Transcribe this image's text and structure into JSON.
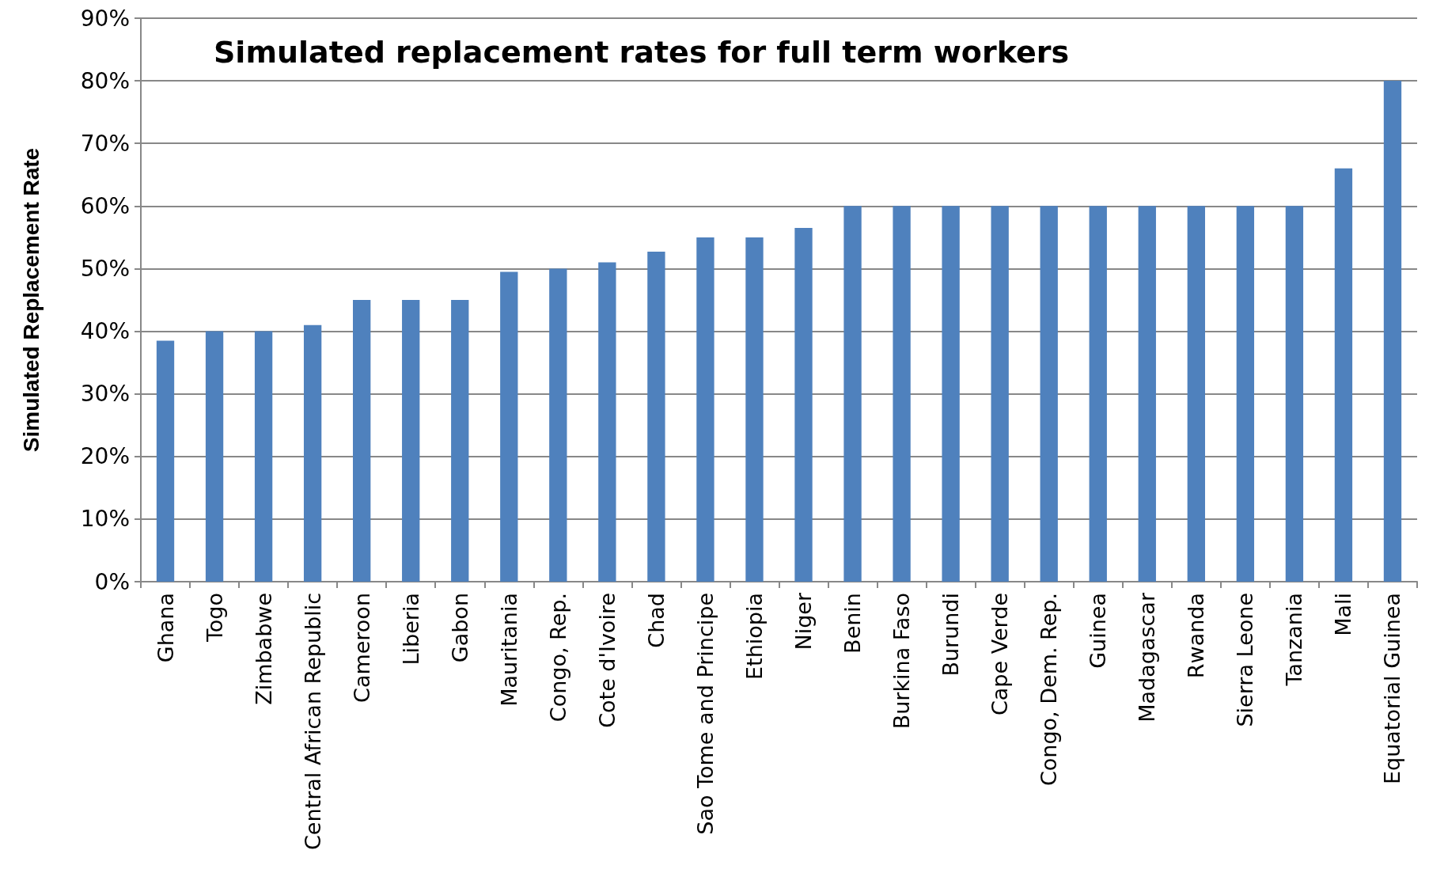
{
  "chart_data": {
    "type": "bar",
    "title": "Simulated replacement rates for full term workers",
    "ylabel": "Simulated Replacement Rate",
    "categories": [
      "Ghana",
      "Togo",
      "Zimbabwe",
      "Central African Republic",
      "Cameroon",
      "Liberia",
      "Gabon",
      "Mauritania",
      "Congo, Rep.",
      "Cote d'Ivoire",
      "Chad",
      "Sao Tome and Principe",
      "Ethiopia",
      "Niger",
      "Benin",
      "Burkina Faso",
      "Burundi",
      "Cape Verde",
      "Congo, Dem. Rep.",
      "Guinea",
      "Madagascar",
      "Rwanda",
      "Sierra Leone",
      "Tanzania",
      "Mali",
      "Equatorial Guinea"
    ],
    "values": [
      38.5,
      40,
      40,
      41,
      45,
      45,
      45,
      49.5,
      50,
      51,
      52.7,
      55,
      55,
      56.5,
      60,
      60,
      60,
      60,
      60,
      60,
      60,
      60,
      60,
      60,
      66,
      80
    ],
    "color": "#4f81bd",
    "ylim": [
      0,
      90
    ],
    "yticks": [
      {
        "value": 0,
        "label": "0%"
      },
      {
        "value": 10,
        "label": "10%"
      },
      {
        "value": 20,
        "label": "20%"
      },
      {
        "value": 30,
        "label": "30%"
      },
      {
        "value": 40,
        "label": "40%"
      },
      {
        "value": 50,
        "label": "50%"
      },
      {
        "value": 60,
        "label": "60%"
      },
      {
        "value": 70,
        "label": "70%"
      },
      {
        "value": 80,
        "label": "80%"
      },
      {
        "value": 90,
        "label": "90%"
      }
    ],
    "grid": "y"
  }
}
